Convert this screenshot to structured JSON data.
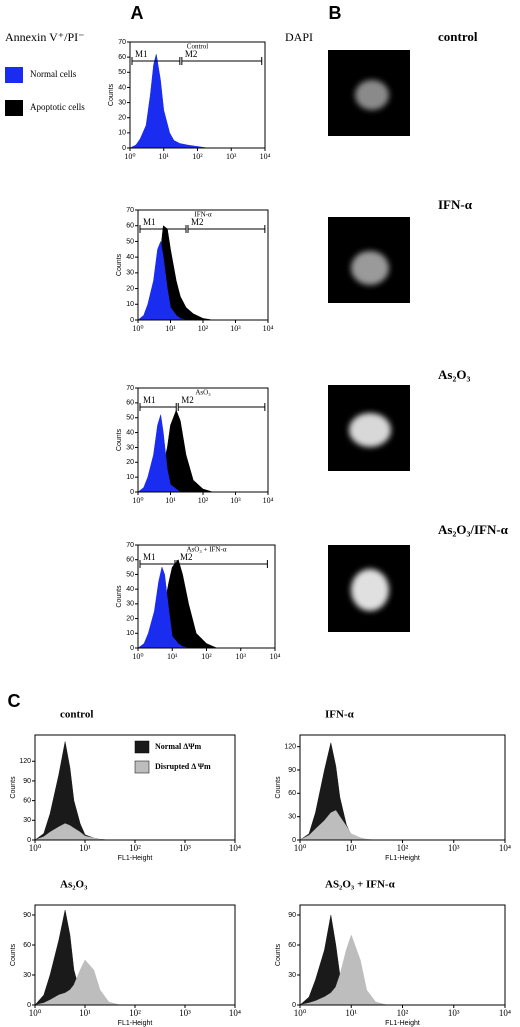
{
  "figure": {
    "panel_labels": [
      "A",
      "B",
      "C"
    ],
    "annexin_label": "Annexin V⁺/PI⁻",
    "dapi_label": "DAPI",
    "legend": [
      {
        "name": "Normal cells",
        "color": "#1a2cf0"
      },
      {
        "name": "Apoptotic cells",
        "color": "#000000"
      }
    ],
    "dapi_conditions": [
      "control",
      "IFN-α",
      "As₂O₃",
      "As₂O₃/IFN-α"
    ]
  },
  "chart_data": [
    {
      "type": "area",
      "title": "Control",
      "ylabel": "Counts",
      "xscale": "log",
      "xlim": [
        1,
        10000
      ],
      "ylim": [
        0,
        70
      ],
      "xticks": [
        {
          "value": 1,
          "label": "10⁰"
        },
        {
          "value": 10,
          "label": "10¹"
        },
        {
          "value": 100,
          "label": "10²"
        },
        {
          "value": 1000,
          "label": "10³"
        },
        {
          "value": 10000,
          "label": "10⁴"
        }
      ],
      "yticks": [
        0,
        10,
        20,
        30,
        40,
        50,
        60,
        70
      ],
      "gates": [
        {
          "label": "M1",
          "range": [
            1,
            30
          ]
        },
        {
          "label": "M2",
          "range": [
            30,
            8000
          ]
        }
      ],
      "x": [
        1,
        1.5,
        2,
        3,
        4,
        5,
        6,
        8,
        10,
        15,
        20,
        30,
        50,
        100,
        200
      ],
      "series": [
        {
          "color": "#1a2cf0",
          "values": [
            0,
            2,
            6,
            15,
            35,
            55,
            62,
            45,
            25,
            10,
            5,
            3,
            2,
            1,
            0
          ]
        }
      ]
    },
    {
      "type": "area",
      "title": "IFN-α",
      "ylabel": "Counts",
      "xscale": "log",
      "xlim": [
        1,
        10000
      ],
      "ylim": [
        0,
        70
      ],
      "xticks": [
        {
          "value": 1,
          "label": "10⁰"
        },
        {
          "value": 10,
          "label": "10¹"
        },
        {
          "value": 100,
          "label": "10²"
        },
        {
          "value": 1000,
          "label": "10³"
        },
        {
          "value": 10000,
          "label": "10⁴"
        }
      ],
      "yticks": [
        0,
        10,
        20,
        30,
        40,
        50,
        60,
        70
      ],
      "gates": [
        {
          "label": "M1",
          "range": [
            1,
            30
          ]
        },
        {
          "label": "M2",
          "range": [
            30,
            8000
          ]
        }
      ],
      "x": [
        1,
        1.5,
        2,
        3,
        4,
        5,
        6,
        8,
        10,
        15,
        20,
        30,
        50,
        100,
        200
      ],
      "series": [
        {
          "color": "#000000",
          "values": [
            0,
            1,
            4,
            10,
            25,
            45,
            60,
            58,
            45,
            25,
            15,
            8,
            4,
            1,
            0
          ]
        },
        {
          "color": "#1a2cf0",
          "values": [
            0,
            3,
            10,
            25,
            45,
            50,
            40,
            20,
            8,
            3,
            1,
            0,
            0,
            0,
            0
          ]
        }
      ]
    },
    {
      "type": "area",
      "title": "AsO₃",
      "ylabel": "Counts",
      "xscale": "log",
      "xlim": [
        1,
        10000
      ],
      "ylim": [
        0,
        70
      ],
      "xticks": [
        {
          "value": 1,
          "label": "10⁰"
        },
        {
          "value": 10,
          "label": "10¹"
        },
        {
          "value": 100,
          "label": "10²"
        },
        {
          "value": 1000,
          "label": "10³"
        },
        {
          "value": 10000,
          "label": "10⁴"
        }
      ],
      "yticks": [
        0,
        10,
        20,
        30,
        40,
        50,
        60,
        70
      ],
      "gates": [
        {
          "label": "M1",
          "range": [
            1,
            15
          ]
        },
        {
          "label": "M2",
          "range": [
            15,
            8000
          ]
        }
      ],
      "x": [
        1,
        1.5,
        2,
        3,
        4,
        5,
        6,
        8,
        10,
        15,
        20,
        30,
        50,
        100,
        200
      ],
      "series": [
        {
          "color": "#000000",
          "values": [
            0,
            0,
            1,
            3,
            6,
            10,
            18,
            30,
            45,
            55,
            48,
            25,
            8,
            2,
            0
          ]
        },
        {
          "color": "#1a2cf0",
          "values": [
            0,
            3,
            10,
            25,
            45,
            52,
            40,
            15,
            5,
            2,
            0,
            0,
            0,
            0,
            0
          ]
        }
      ]
    },
    {
      "type": "area",
      "title": "AsO₃ + IFN-α",
      "ylabel": "Counts",
      "xscale": "log",
      "xlim": [
        1,
        10000
      ],
      "ylim": [
        0,
        70
      ],
      "xticks": [
        {
          "value": 1,
          "label": "10⁰"
        },
        {
          "value": 10,
          "label": "10¹"
        },
        {
          "value": 100,
          "label": "10²"
        },
        {
          "value": 1000,
          "label": "10³"
        },
        {
          "value": 10000,
          "label": "10⁴"
        }
      ],
      "yticks": [
        0,
        10,
        20,
        30,
        40,
        50,
        60,
        70
      ],
      "gates": [
        {
          "label": "M1",
          "range": [
            1,
            12
          ]
        },
        {
          "label": "M2",
          "range": [
            12,
            6000
          ]
        }
      ],
      "x": [
        1,
        1.5,
        2,
        3,
        4,
        5,
        6,
        8,
        10,
        15,
        20,
        30,
        50,
        100,
        200
      ],
      "series": [
        {
          "color": "#000000",
          "values": [
            0,
            0,
            2,
            5,
            10,
            18,
            30,
            45,
            55,
            60,
            50,
            30,
            10,
            3,
            0
          ]
        },
        {
          "color": "#1a2cf0",
          "values": [
            0,
            3,
            10,
            25,
            45,
            55,
            50,
            25,
            8,
            3,
            1,
            0,
            0,
            0,
            0
          ]
        }
      ]
    },
    {
      "type": "area",
      "title": "control",
      "ylabel": "Counts",
      "xlabel": "FL1-Height",
      "xscale": "log",
      "xlim": [
        1,
        10000
      ],
      "ylim": [
        0,
        160
      ],
      "xticks": [
        {
          "value": 1,
          "label": "10⁰"
        },
        {
          "value": 10,
          "label": "10¹"
        },
        {
          "value": 100,
          "label": "10²"
        },
        {
          "value": 1000,
          "label": "10³"
        },
        {
          "value": 10000,
          "label": "10⁴"
        }
      ],
      "yticks": [
        0,
        30,
        60,
        90,
        120
      ],
      "x": [
        1,
        1.5,
        2,
        3,
        4,
        5,
        6,
        8,
        10,
        15,
        20,
        30,
        50,
        100,
        200
      ],
      "legend": true,
      "series": [
        {
          "name": "Normal ΔΨm",
          "color": "#1a1a1a",
          "values": [
            0,
            10,
            40,
            100,
            150,
            110,
            60,
            25,
            8,
            3,
            1,
            0,
            0,
            0,
            0
          ]
        },
        {
          "name": "Disrupted Δ Ψm",
          "color": "#bdbdbd",
          "values": [
            0,
            5,
            12,
            20,
            25,
            22,
            18,
            12,
            6,
            3,
            1,
            0,
            0,
            0,
            0
          ]
        }
      ]
    },
    {
      "type": "area",
      "title": "IFN-α",
      "ylabel": "Counts",
      "xlabel": "FL1-Height",
      "xscale": "log",
      "xlim": [
        1,
        10000
      ],
      "ylim": [
        0,
        135
      ],
      "xticks": [
        {
          "value": 1,
          "label": "10⁰"
        },
        {
          "value": 10,
          "label": "10¹"
        },
        {
          "value": 100,
          "label": "10²"
        },
        {
          "value": 1000,
          "label": "10³"
        },
        {
          "value": 10000,
          "label": "10⁴"
        }
      ],
      "yticks": [
        0,
        30,
        60,
        90,
        120
      ],
      "x": [
        1,
        1.5,
        2,
        3,
        4,
        5,
        6,
        8,
        10,
        15,
        20,
        30,
        50,
        100,
        200
      ],
      "series": [
        {
          "color": "#1a1a1a",
          "values": [
            0,
            8,
            35,
            90,
            125,
            95,
            55,
            20,
            6,
            2,
            0,
            0,
            0,
            0,
            0
          ]
        },
        {
          "color": "#bdbdbd",
          "values": [
            0,
            6,
            14,
            25,
            35,
            38,
            30,
            18,
            8,
            3,
            1,
            0,
            0,
            0,
            0
          ]
        }
      ]
    },
    {
      "type": "area",
      "title": "As₂O₃",
      "ylabel": "Counts",
      "xlabel": "FL1-Height",
      "xscale": "log",
      "xlim": [
        1,
        10000
      ],
      "ylim": [
        0,
        100
      ],
      "xticks": [
        {
          "value": 1,
          "label": "10⁰"
        },
        {
          "value": 10,
          "label": "10¹"
        },
        {
          "value": 100,
          "label": "10²"
        },
        {
          "value": 1000,
          "label": "10³"
        },
        {
          "value": 10000,
          "label": "10⁴"
        }
      ],
      "yticks": [
        0,
        30,
        60,
        90
      ],
      "x": [
        1,
        1.5,
        2,
        3,
        4,
        5,
        6,
        8,
        10,
        15,
        20,
        30,
        50,
        100,
        200
      ],
      "series": [
        {
          "color": "#1a1a1a",
          "values": [
            0,
            10,
            30,
            65,
            95,
            70,
            35,
            12,
            5,
            3,
            2,
            1,
            0,
            0,
            0
          ]
        },
        {
          "color": "#bdbdbd",
          "values": [
            0,
            2,
            5,
            10,
            12,
            15,
            20,
            35,
            45,
            35,
            15,
            3,
            0,
            0,
            0
          ]
        }
      ]
    },
    {
      "type": "area",
      "title": "AS₂O₃ + IFN-α",
      "ylabel": "Counts",
      "xlabel": "FL1-Height",
      "xscale": "log",
      "xlim": [
        1,
        10000
      ],
      "ylim": [
        0,
        100
      ],
      "xticks": [
        {
          "value": 1,
          "label": "10⁰"
        },
        {
          "value": 10,
          "label": "10¹"
        },
        {
          "value": 100,
          "label": "10²"
        },
        {
          "value": 1000,
          "label": "10³"
        },
        {
          "value": 10000,
          "label": "10⁴"
        }
      ],
      "yticks": [
        0,
        30,
        60,
        90
      ],
      "x": [
        1,
        1.5,
        2,
        3,
        4,
        5,
        6,
        8,
        10,
        15,
        20,
        30,
        50,
        100,
        200
      ],
      "series": [
        {
          "color": "#1a1a1a",
          "values": [
            0,
            8,
            25,
            55,
            90,
            60,
            30,
            12,
            6,
            4,
            3,
            1,
            0,
            0,
            0
          ]
        },
        {
          "color": "#bdbdbd",
          "values": [
            0,
            2,
            4,
            8,
            12,
            18,
            30,
            55,
            70,
            45,
            15,
            3,
            0,
            0,
            0
          ]
        }
      ]
    }
  ]
}
